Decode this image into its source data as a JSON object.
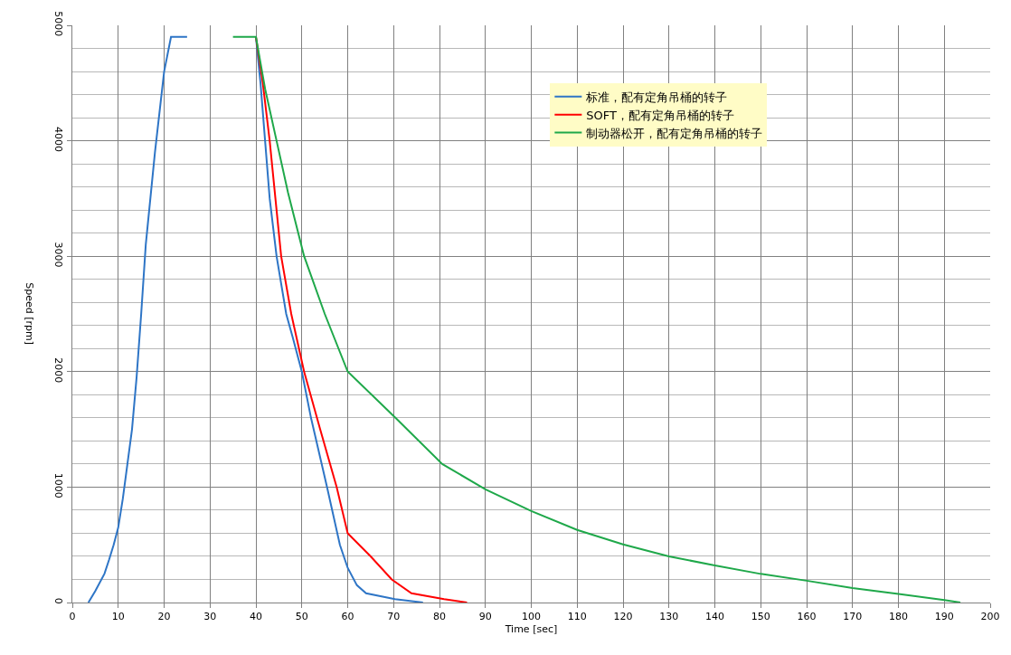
{
  "chart_data": {
    "type": "line",
    "xlabel": "Time [sec]",
    "ylabel": "Speed [rpm]",
    "xlim": [
      0,
      200
    ],
    "xticks": [
      0,
      10,
      20,
      30,
      40,
      50,
      60,
      70,
      80,
      90,
      100,
      110,
      120,
      130,
      140,
      150,
      160,
      170,
      180,
      190,
      200
    ],
    "ylim": [
      0,
      5000
    ],
    "yticks": [
      0,
      1000,
      2000,
      3000,
      4000,
      5000
    ],
    "grid": true,
    "legend": "top right",
    "marker": "none",
    "line_style": "solid",
    "series": [
      {
        "name": "标准，配有定角吊桶的转子",
        "color": "#2e75c6",
        "x": [
          3.5,
          5,
          7,
          8,
          9,
          10,
          11,
          12,
          13,
          14,
          15,
          16,
          18,
          20,
          21.5,
          22,
          25,
          32,
          40,
          41,
          42,
          43,
          44.5,
          46.6,
          48,
          50,
          52,
          55.5,
          58.3,
          60,
          62,
          64,
          70.3,
          76.4
        ],
        "values": [
          0,
          100,
          250,
          370,
          500,
          650,
          900,
          1200,
          1500,
          1950,
          2500,
          3100,
          3900,
          4600,
          4900,
          4900,
          4900,
          null,
          4900,
          4500,
          4000,
          3500,
          3000,
          2500,
          2300,
          2000,
          1600,
          1000,
          500,
          300,
          150,
          80,
          30,
          0
        ]
      },
      {
        "name": "SOFT，配有定角吊桶的转子",
        "color": "#ff0000",
        "x": [
          40,
          41.5,
          43,
          45.5,
          47.7,
          50.5,
          54,
          57.6,
          60,
          65,
          69.6,
          73.9,
          81,
          86
        ],
        "values": [
          4900,
          4500,
          4000,
          3000,
          2500,
          2000,
          1500,
          1000,
          600,
          400,
          200,
          80,
          30,
          0
        ]
      },
      {
        "name": "制动器松开，配有定角吊桶的转子",
        "color": "#1fa84a",
        "x": [
          35,
          40,
          42,
          44.5,
          47,
          50.5,
          55,
          60,
          70.4,
          80.6,
          90,
          100,
          110,
          120,
          130,
          140,
          150,
          160,
          170,
          180,
          190,
          193.5
        ],
        "values": [
          4900,
          4900,
          4450,
          4000,
          3550,
          3000,
          2500,
          2000,
          1600,
          1200,
          980,
          792,
          629,
          503,
          400,
          321,
          248,
          189,
          126,
          75,
          22,
          0
        ]
      }
    ]
  }
}
